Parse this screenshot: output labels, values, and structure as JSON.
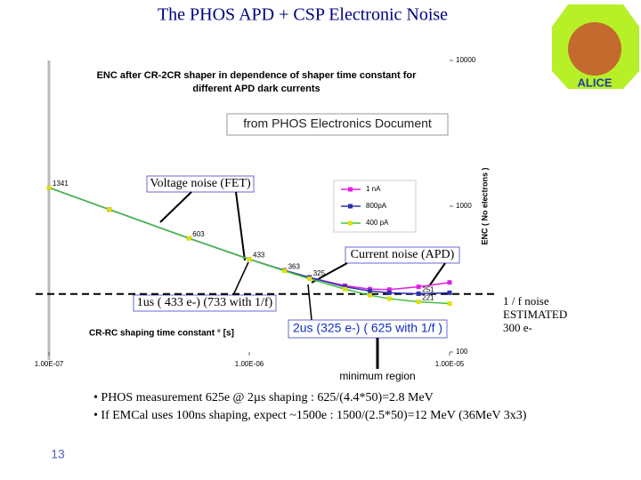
{
  "slide_title": "The PHOS APD + CSP Electronic Noise",
  "logo_text": "ALICE",
  "source_note": "from PHOS Electronics Document",
  "bullets": [
    "• PHOS measurement 625e @ 2µs shaping  : 625/(4.4*50)=2.8 MeV",
    "• If EMCal uses 100ns shaping, expect ~1500e  : 1500/(2.5*50)=12 MeV (36MeV 3x3)"
  ],
  "page_number": "13",
  "chart_data": {
    "type": "line",
    "title": "ENC  after CR-2CR  shaper in dependence of shaper time constant for different APD dark currents",
    "x_label": "CR-RC shaping time constant ° [s]",
    "y_label": "ENC  ( No electrons )",
    "x_log": true,
    "y_log": true,
    "xlim": [
      1e-07,
      1e-05
    ],
    "xticks": [
      {
        "value": 1e-07,
        "label": "1.00E-07"
      },
      {
        "value": 1e-06,
        "label": "1.00E-06"
      },
      {
        "value": 1e-05,
        "label": "1.00E-05"
      }
    ],
    "ylim": [
      100,
      10000
    ],
    "yticks": [
      100,
      1000,
      10000
    ],
    "x": [
      1e-07,
      2e-07,
      5e-07,
      1e-06,
      1.5e-06,
      2e-06,
      3e-06,
      4e-06,
      5e-06,
      7e-06,
      1e-05
    ],
    "series": [
      {
        "name": "1 nA",
        "color": "#e020e0",
        "values": [
          1341,
          950,
          603,
          433,
          363,
          325,
          285,
          270,
          268,
          280,
          300
        ]
      },
      {
        "name": "800pA",
        "color": "#3030b0",
        "values": [
          1341,
          950,
          603,
          433,
          363,
          325,
          280,
          262,
          255,
          251,
          255
        ]
      },
      {
        "name": "400 pA",
        "color": "#e0e000",
        "line_color": "#40c040",
        "values": [
          1341,
          950,
          603,
          433,
          360,
          318,
          270,
          245,
          232,
          221,
          215
        ]
      }
    ],
    "data_labels": [
      {
        "x": 1e-07,
        "value": 1341
      },
      {
        "x": 5e-07,
        "value": 603
      },
      {
        "x": 1e-06,
        "value": 433
      },
      {
        "x": 1.5e-06,
        "value": 363
      },
      {
        "x": 2e-06,
        "value": 325
      },
      {
        "x": 7e-06,
        "value": 251
      },
      {
        "x": 7e-06,
        "value": 221
      }
    ],
    "estimated_line": 250,
    "annotations": {
      "voltage": "Voltage noise (FET)",
      "current": "Current noise (APD)",
      "one_us": "1us  ( 433 e-)  (733 with 1/f)",
      "two_us": "2us  (325 e-) ( 625 with 1/f )",
      "one_over_f": [
        "1 / f noise",
        "ESTIMATED",
        "300 e-"
      ],
      "minimum": "minimum region"
    }
  }
}
